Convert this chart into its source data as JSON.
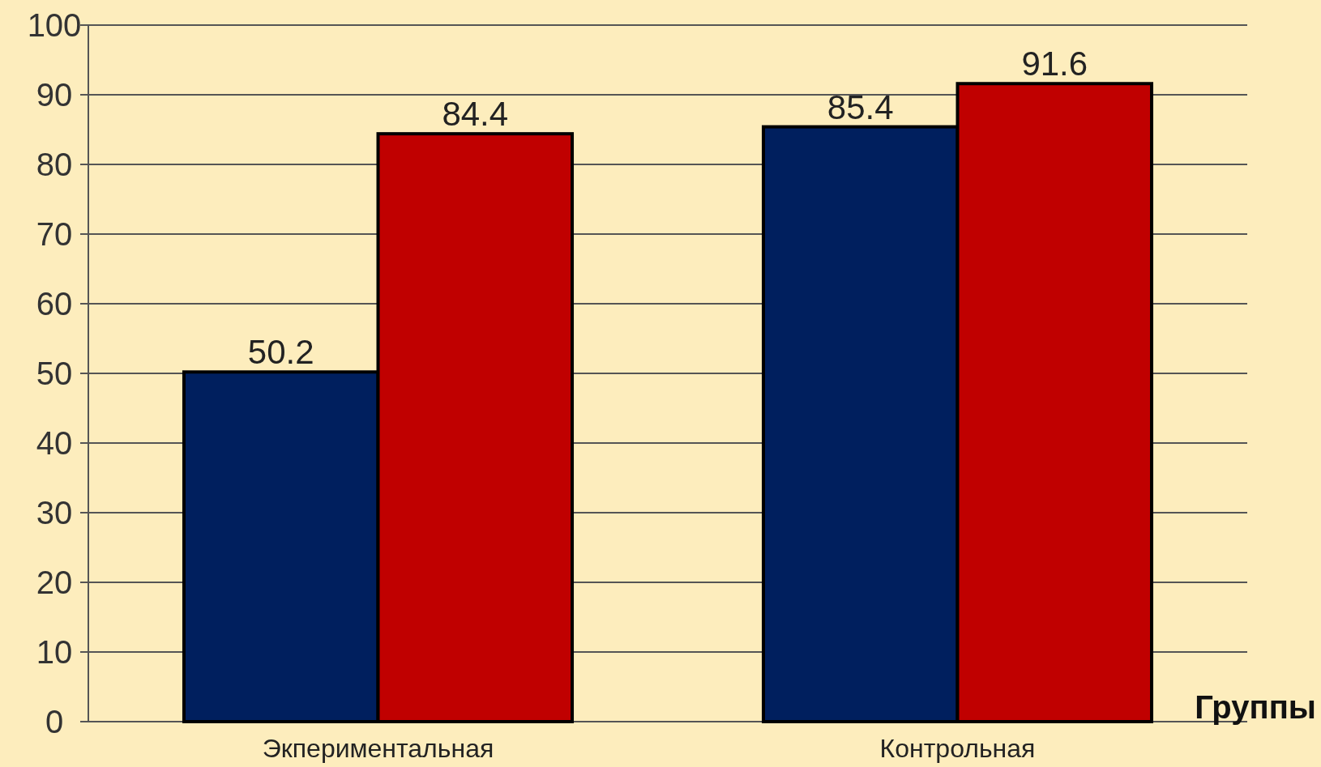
{
  "chart_data": {
    "type": "bar",
    "xlabel": "Группы",
    "categories": [
      "Экпериментальная",
      "Контрольная"
    ],
    "series": [
      {
        "color": "#001f5e",
        "values": [
          50.2,
          85.4
        ]
      },
      {
        "color": "#c00000",
        "values": [
          84.4,
          91.6
        ]
      }
    ],
    "ylim": [
      0,
      100
    ],
    "yticks": [
      0,
      10,
      20,
      30,
      40,
      50,
      60,
      70,
      80,
      90,
      100
    ],
    "grid": "y",
    "data_labels": true
  }
}
